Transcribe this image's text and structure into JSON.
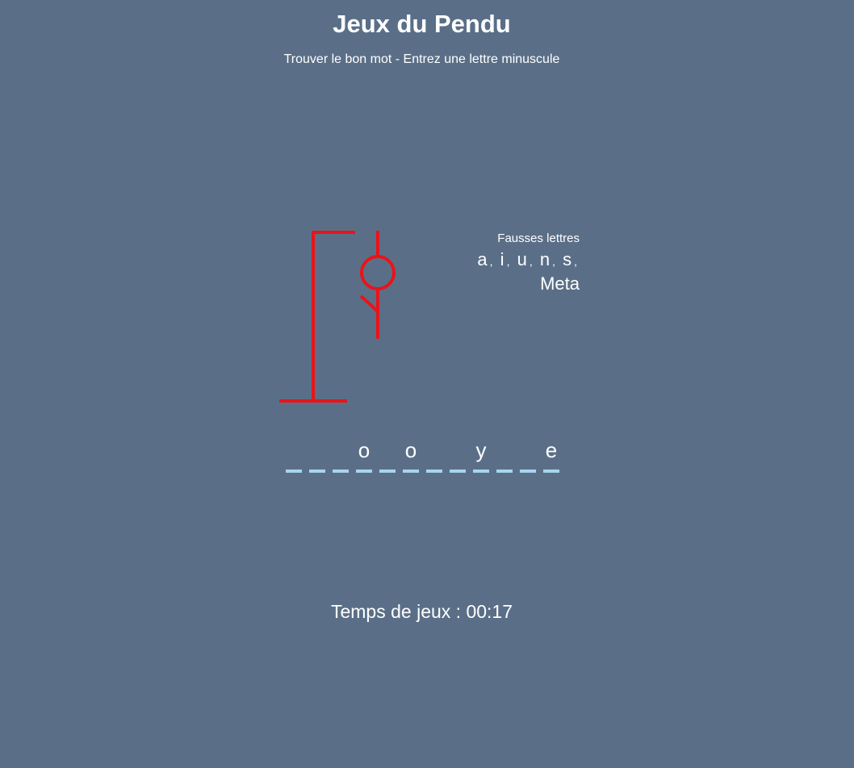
{
  "header": {
    "title": "Jeux du Pendu",
    "subtitle": "Trouver le bon mot - Entrez une lettre minuscule"
  },
  "wrong": {
    "title": "Fausses lettres",
    "letters": [
      "a",
      "i",
      "u",
      "n",
      "s",
      "Meta"
    ]
  },
  "word": {
    "letters": [
      "",
      "",
      "",
      "o",
      "",
      "o",
      "",
      "",
      "y",
      "",
      "",
      "e"
    ]
  },
  "timer": {
    "label": "Temps de jeux : 00:17"
  },
  "colors": {
    "background": "#5a6f87",
    "gallows": "#e8141a",
    "dash": "#a8d4ef"
  }
}
